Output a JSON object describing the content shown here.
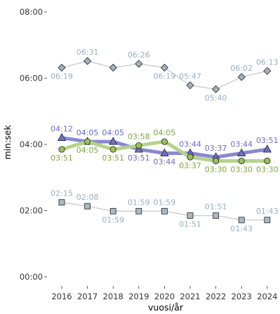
{
  "chart_data": {
    "type": "line",
    "title": "",
    "xlabel": "vuosi/år",
    "ylabel": "min:sek",
    "x": [
      "2016",
      "2017",
      "2018",
      "2019",
      "2020",
      "2021",
      "2022",
      "2023",
      "2024"
    ],
    "y_ticks": [
      "00:00",
      "02:00",
      "04:00",
      "06:00",
      "08:00"
    ],
    "ylim": [
      "00:00",
      "08:00"
    ],
    "grid": false,
    "legend": "none",
    "series": [
      {
        "values": [
          "06:19",
          "06:31",
          "06:19",
          "06:26",
          "06:19",
          "05:47",
          "05:40",
          "06:02",
          "06:13"
        ],
        "marker": "diamond",
        "line_color": "#c9c9c9",
        "marker_fill": "#a4b3bd",
        "label_color": "#9aaebc",
        "label_pos": [
          "below",
          "above",
          "none",
          "above",
          "below",
          "above",
          "below",
          "above",
          "above"
        ]
      },
      {
        "values": [
          "04:12",
          "04:05",
          "04:05",
          "03:51",
          "03:44",
          "03:44",
          "03:37",
          "03:44",
          "03:51"
        ],
        "marker": "triangle",
        "line_color": "#8888d2",
        "marker_fill": "#6f6fc3",
        "label_color": "#6b6bc4",
        "label_pos": [
          "above",
          "above",
          "above",
          "below",
          "below",
          "above",
          "above",
          "above",
          "above"
        ]
      },
      {
        "values": [
          "03:51",
          "04:05",
          "03:51",
          "03:58",
          "04:05",
          "03:37",
          "03:30",
          "03:30",
          "03:30"
        ],
        "marker": "circle",
        "line_color": "#b5d38a",
        "marker_fill": "#99bf59",
        "label_color": "#7fa63e",
        "label_pos": [
          "below",
          "below",
          "below",
          "above",
          "above",
          "below",
          "below",
          "below",
          "below"
        ]
      },
      {
        "values": [
          "02:15",
          "02:08",
          "01:59",
          "01:59",
          "01:59",
          "01:51",
          "01:51",
          "01:43",
          "01:43"
        ],
        "marker": "square",
        "line_color": "#c9c9c9",
        "marker_fill": "#aab9c4",
        "label_color": "#9aaebc",
        "label_pos": [
          "above",
          "above",
          "below",
          "above",
          "above",
          "below",
          "above",
          "below",
          "above"
        ]
      }
    ]
  }
}
